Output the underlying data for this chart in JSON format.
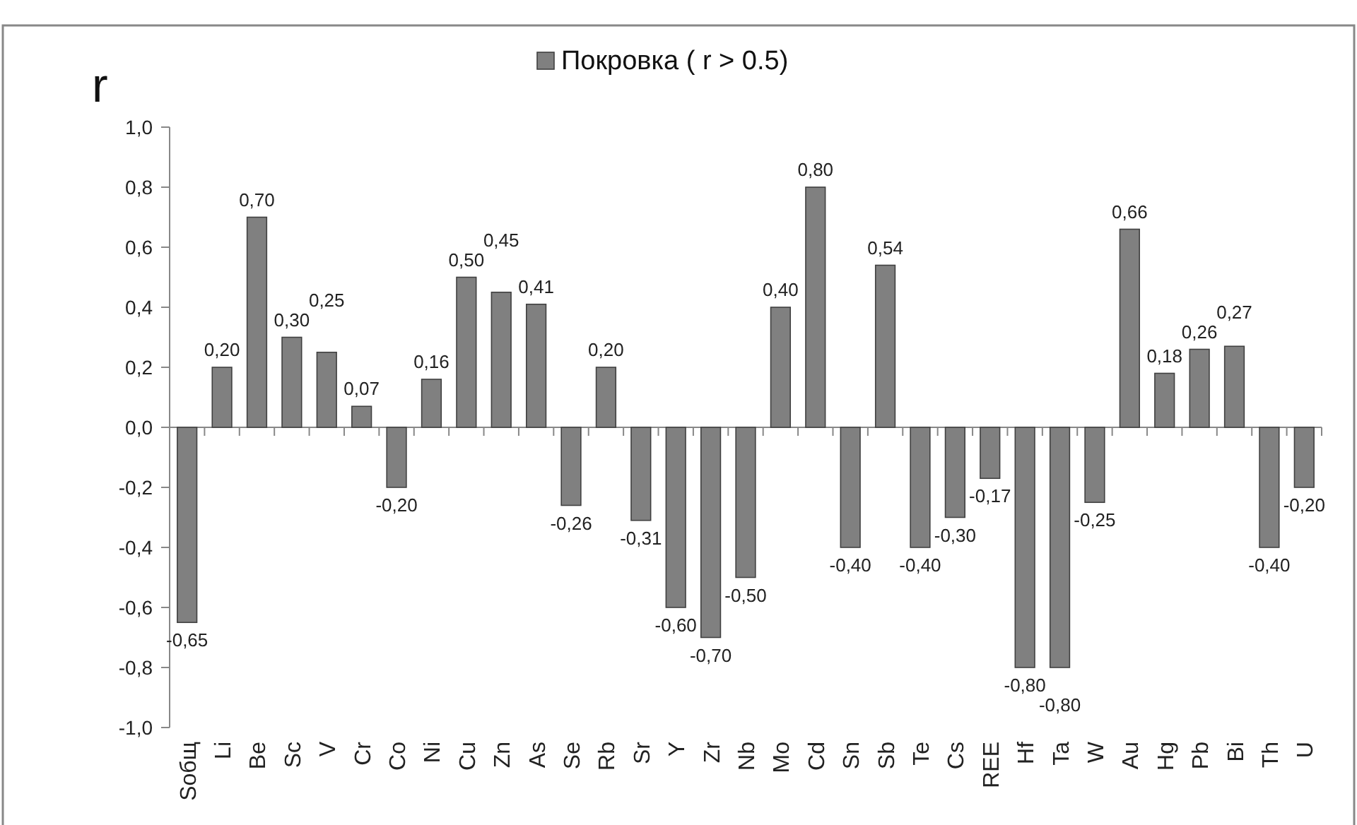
{
  "chart_data": {
    "type": "bar",
    "ylabel": "r",
    "legend": "top",
    "categories": [
      "Sобщ",
      "Li",
      "Be",
      "Sc",
      "V",
      "Cr",
      "Co",
      "Ni",
      "Cu",
      "Zn",
      "As",
      "Se",
      "Rb",
      "Sr",
      "Y",
      "Zr",
      "Nb",
      "Mo",
      "Cd",
      "Sn",
      "Sb",
      "Te",
      "Cs",
      "REE",
      "Hf",
      "Ta",
      "W",
      "Au",
      "Hg",
      "Pb",
      "Bi",
      "Th",
      "U"
    ],
    "series": [
      {
        "name": "Покровка ( r > 0.5)",
        "color": "#808080",
        "values": [
          -0.65,
          0.2,
          0.7,
          0.3,
          0.25,
          0.07,
          -0.2,
          0.16,
          0.5,
          0.45,
          0.41,
          -0.26,
          0.2,
          -0.31,
          -0.6,
          -0.7,
          -0.5,
          0.4,
          0.8,
          -0.4,
          0.54,
          -0.4,
          -0.3,
          -0.17,
          -0.8,
          -0.8,
          -0.25,
          0.66,
          0.18,
          0.26,
          0.27,
          -0.4,
          -0.2
        ],
        "value_labels": [
          "-0,65",
          "0,20",
          "0,70",
          "0,30",
          "0,25",
          "0,07",
          "-0,20",
          "0,16",
          "0,50",
          "0,45",
          "0,41",
          "-0,26",
          "0,20",
          "-0,31",
          "-0,60",
          "-0,70",
          "-0,50",
          "0,40",
          "0,80",
          "-0,40",
          "0,54",
          "-0,40",
          "-0,30",
          "-0,17",
          "-0,80",
          "-0,80",
          "-0,25",
          "0,66",
          "0,18",
          "0,26",
          "0,27",
          "-0,40",
          "-0,20"
        ]
      }
    ],
    "ylim": [
      -1,
      1
    ],
    "yticks": [
      {
        "value": -1,
        "label": "-1,0"
      },
      {
        "value": -0.8,
        "label": "-0,8"
      },
      {
        "value": -0.6,
        "label": "-0,6"
      },
      {
        "value": -0.4,
        "label": "-0,4"
      },
      {
        "value": -0.2,
        "label": "-0,2"
      },
      {
        "value": 0,
        "label": "0,0"
      },
      {
        "value": 0.2,
        "label": "0,2"
      },
      {
        "value": 0.4,
        "label": "0,4"
      },
      {
        "value": 0.6,
        "label": "0,6"
      },
      {
        "value": 0.8,
        "label": "0,8"
      },
      {
        "value": 1,
        "label": "1,0"
      }
    ]
  }
}
